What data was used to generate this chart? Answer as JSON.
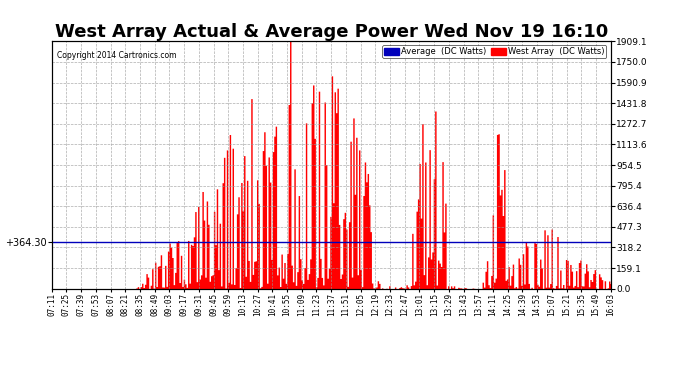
{
  "title": "West Array Actual & Average Power Wed Nov 19 16:10",
  "copyright": "Copyright 2014 Cartronics.com",
  "average_value": 364.3,
  "y_max": 1909.1,
  "y_ticks_right": [
    0.0,
    159.1,
    318.2,
    477.3,
    636.4,
    795.4,
    954.5,
    1113.6,
    1272.7,
    1431.8,
    1590.9,
    1750.0,
    1909.1
  ],
  "fill_color": "#FF0000",
  "avg_line_color": "#0000BB",
  "background_color": "#FFFFFF",
  "grid_color": "#999999",
  "title_fontsize": 13,
  "legend_avg_label": "Average  (DC Watts)",
  "legend_west_label": "West Array  (DC Watts)",
  "x_tick_labels": [
    "07:11",
    "07:25",
    "07:39",
    "07:53",
    "08:07",
    "08:21",
    "08:35",
    "08:49",
    "09:03",
    "09:17",
    "09:31",
    "09:45",
    "09:59",
    "10:13",
    "10:27",
    "10:41",
    "10:55",
    "11:09",
    "11:23",
    "11:37",
    "11:51",
    "12:05",
    "12:19",
    "12:33",
    "12:47",
    "13:01",
    "13:15",
    "13:29",
    "13:43",
    "13:57",
    "14:11",
    "14:25",
    "14:39",
    "14:53",
    "15:07",
    "15:21",
    "15:35",
    "15:49",
    "16:03"
  ],
  "n_points": 390,
  "seed": 7
}
